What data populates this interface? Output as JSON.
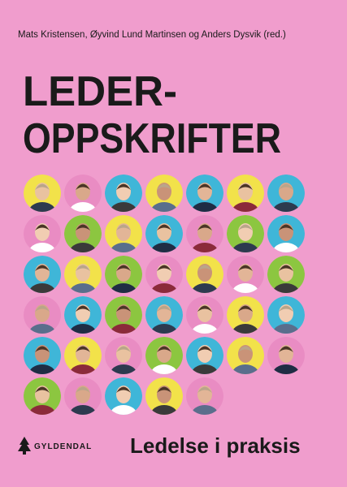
{
  "cover": {
    "authors": "Mats Kristensen, Øyvind Lund Martinsen og Anders Dysvik (red.)",
    "title_line_1": "LEDER-",
    "title_line_2": "OPPSKRIFTER",
    "publisher": "GYLDENDAL",
    "subtitle": "Ledelse i praksis"
  }
}
